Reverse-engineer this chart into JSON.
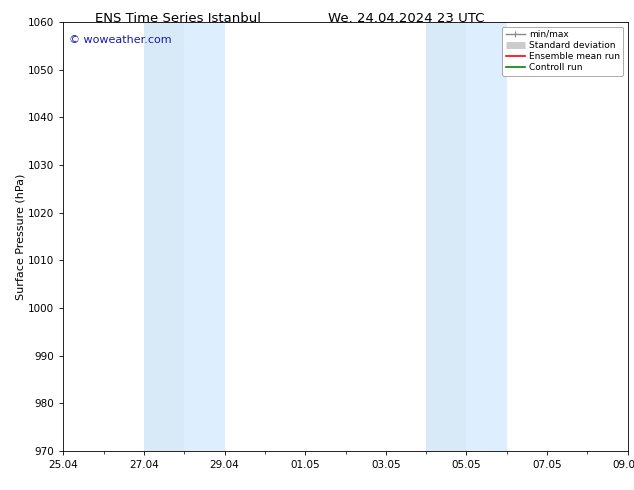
{
  "title_left": "ENS Time Series Istanbul",
  "title_right": "We. 24.04.2024 23 UTC",
  "ylabel": "Surface Pressure (hPa)",
  "ylim": [
    970,
    1060
  ],
  "yticks": [
    970,
    980,
    990,
    1000,
    1010,
    1020,
    1030,
    1040,
    1050,
    1060
  ],
  "xlim_start": 0,
  "xlim_end": 14,
  "xtick_labels": [
    "25.04",
    "27.04",
    "29.04",
    "01.05",
    "03.05",
    "05.05",
    "07.05",
    "09.05"
  ],
  "xtick_positions": [
    0,
    2,
    4,
    6,
    8,
    10,
    12,
    14
  ],
  "shaded_bands": [
    {
      "xmin": 2.0,
      "xmax": 3.0,
      "color": "#d8eaf8"
    },
    {
      "xmin": 3.0,
      "xmax": 4.0,
      "color": "#ddeeff"
    },
    {
      "xmin": 9.0,
      "xmax": 10.0,
      "color": "#d8eaf8"
    },
    {
      "xmin": 10.0,
      "xmax": 11.0,
      "color": "#ddeeff"
    }
  ],
  "watermark_text": "© woweather.com",
  "watermark_color": "#1a1aaa",
  "legend_items": [
    {
      "label": "min/max",
      "color": "#888888",
      "lw": 1.0
    },
    {
      "label": "Standard deviation",
      "color": "#cccccc",
      "lw": 5
    },
    {
      "label": "Ensemble mean run",
      "color": "#ff0000",
      "lw": 1.2
    },
    {
      "label": "Controll run",
      "color": "#008800",
      "lw": 1.2
    }
  ],
  "bg_color": "#ffffff",
  "spine_color": "#000000",
  "tick_color": "#000000",
  "font_size": 7.5,
  "title_font_size": 9.5
}
